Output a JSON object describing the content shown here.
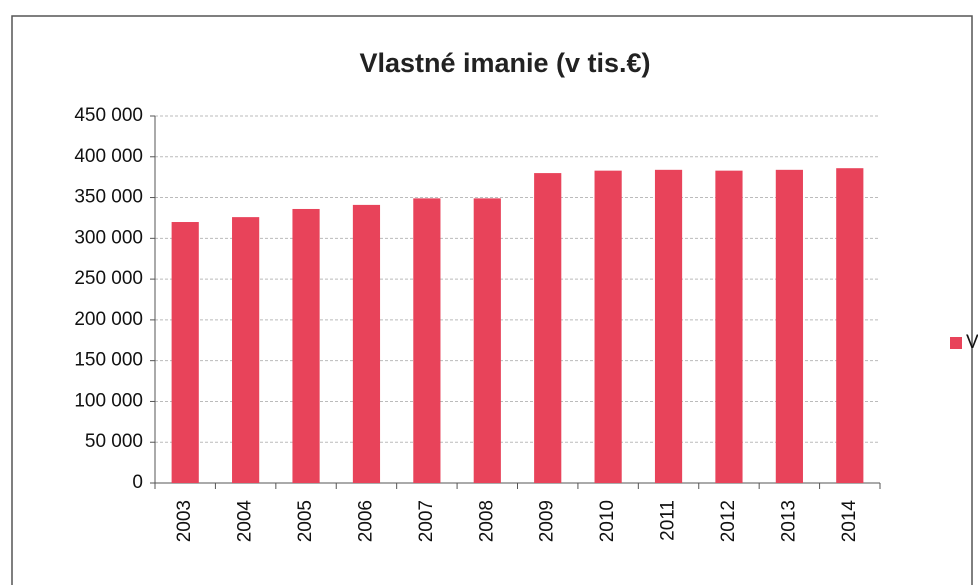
{
  "chart_data": {
    "type": "bar",
    "title": "Vlastné imanie  (v tis.€)",
    "categories": [
      "2003",
      "2004",
      "2005",
      "2006",
      "2007",
      "2008",
      "2009",
      "2010",
      "2011",
      "2012",
      "2013",
      "2014"
    ],
    "series": [
      {
        "name": "VI",
        "color": "#e8435a",
        "values": [
          320000,
          326000,
          336000,
          341000,
          349000,
          349000,
          380000,
          383000,
          384000,
          383000,
          384000,
          386000
        ]
      }
    ],
    "ylim": [
      0,
      450000
    ],
    "yticks": [
      0,
      {
        "value": 50000,
        "label": "50 000"
      },
      {
        "value": 100000,
        "label": "100 000"
      },
      {
        "value": 150000,
        "label": "150 000"
      },
      {
        "value": 200000,
        "label": "200 000"
      },
      {
        "value": 250000,
        "label": "250 000"
      },
      {
        "value": 300000,
        "label": "300 000"
      },
      {
        "value": 350000,
        "label": "350 000"
      },
      {
        "value": 400000,
        "label": "400 000"
      },
      {
        "value": 450000,
        "label": "450 000"
      }
    ],
    "grid": true,
    "legend": "right"
  }
}
